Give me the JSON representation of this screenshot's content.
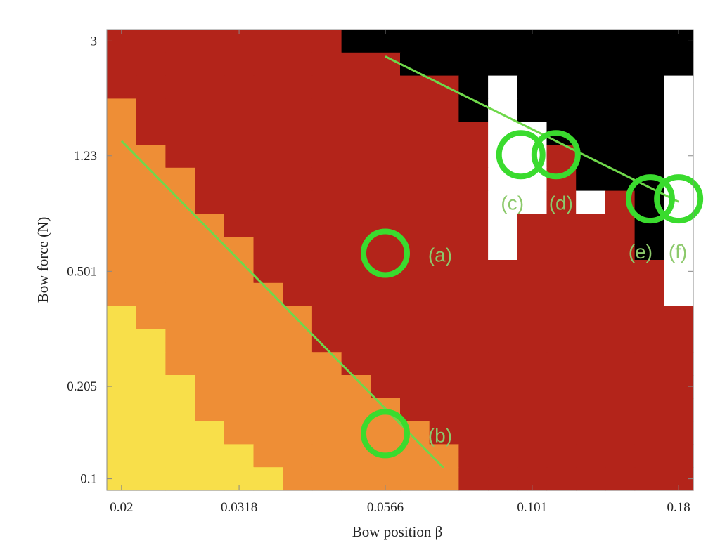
{
  "chart_data": {
    "type": "heatmap",
    "title": "",
    "xlabel": "Bow position β",
    "ylabel": "Bow force (N)",
    "xscale": "log",
    "yscale": "log",
    "xlim": [
      0.02,
      0.18
    ],
    "ylim": [
      0.1,
      3
    ],
    "xticks": [
      "0.02",
      "0.0318",
      "0.0566",
      "0.101",
      "0.18"
    ],
    "xtick_values": [
      0.02,
      0.0318,
      0.0566,
      0.101,
      0.18
    ],
    "yticks": [
      "3",
      "1.23",
      "0.501",
      "0.205",
      "0.1"
    ],
    "ytick_values": [
      3,
      1.23,
      0.501,
      0.205,
      0.1
    ],
    "grid": false,
    "n_cols": 20,
    "n_rows": 20,
    "row_order": "top row = highest force (3 N), bottom row = lowest force (0.1 N); columns left to right = beta 0.02 to 0.18",
    "category_colors": [
      "#F8DF4A",
      "#EE8E36",
      "#B3241A",
      "#000000",
      "#FFFFFF"
    ],
    "matrix": [
      [
        2,
        2,
        2,
        2,
        2,
        2,
        2,
        2,
        3,
        3,
        3,
        3,
        3,
        3,
        3,
        3,
        3,
        3,
        3,
        3
      ],
      [
        2,
        2,
        2,
        2,
        2,
        2,
        2,
        2,
        2,
        2,
        3,
        3,
        3,
        3,
        3,
        3,
        3,
        3,
        3,
        3
      ],
      [
        2,
        2,
        2,
        2,
        2,
        2,
        2,
        2,
        2,
        2,
        2,
        2,
        3,
        4,
        3,
        3,
        3,
        3,
        3,
        4
      ],
      [
        1,
        2,
        2,
        2,
        2,
        2,
        2,
        2,
        2,
        2,
        2,
        2,
        3,
        4,
        3,
        3,
        3,
        3,
        3,
        4
      ],
      [
        1,
        2,
        2,
        2,
        2,
        2,
        2,
        2,
        2,
        2,
        2,
        2,
        2,
        4,
        4,
        3,
        3,
        3,
        3,
        4
      ],
      [
        1,
        1,
        2,
        2,
        2,
        2,
        2,
        2,
        2,
        2,
        2,
        2,
        2,
        4,
        4,
        2,
        3,
        3,
        3,
        4
      ],
      [
        1,
        1,
        1,
        2,
        2,
        2,
        2,
        2,
        2,
        2,
        2,
        2,
        2,
        4,
        4,
        2,
        3,
        3,
        3,
        4
      ],
      [
        1,
        1,
        1,
        2,
        2,
        2,
        2,
        2,
        2,
        2,
        2,
        2,
        2,
        4,
        4,
        2,
        4,
        2,
        3,
        4
      ],
      [
        1,
        1,
        1,
        1,
        2,
        2,
        2,
        2,
        2,
        2,
        2,
        2,
        2,
        4,
        2,
        2,
        2,
        2,
        3,
        4
      ],
      [
        1,
        1,
        1,
        1,
        1,
        2,
        2,
        2,
        2,
        2,
        2,
        2,
        2,
        4,
        2,
        2,
        2,
        2,
        3,
        4
      ],
      [
        1,
        1,
        1,
        1,
        1,
        2,
        2,
        2,
        2,
        2,
        2,
        2,
        2,
        2,
        2,
        2,
        2,
        2,
        2,
        4
      ],
      [
        1,
        1,
        1,
        1,
        1,
        1,
        2,
        2,
        2,
        2,
        2,
        2,
        2,
        2,
        2,
        2,
        2,
        2,
        2,
        4
      ],
      [
        0,
        1,
        1,
        1,
        1,
        1,
        1,
        2,
        2,
        2,
        2,
        2,
        2,
        2,
        2,
        2,
        2,
        2,
        2,
        2
      ],
      [
        0,
        0,
        1,
        1,
        1,
        1,
        1,
        2,
        2,
        2,
        2,
        2,
        2,
        2,
        2,
        2,
        2,
        2,
        2,
        2
      ],
      [
        0,
        0,
        1,
        1,
        1,
        1,
        1,
        1,
        2,
        2,
        2,
        2,
        2,
        2,
        2,
        2,
        2,
        2,
        2,
        2
      ],
      [
        0,
        0,
        0,
        1,
        1,
        1,
        1,
        1,
        1,
        2,
        2,
        2,
        2,
        2,
        2,
        2,
        2,
        2,
        2,
        2
      ],
      [
        0,
        0,
        0,
        1,
        1,
        1,
        1,
        1,
        1,
        1,
        2,
        2,
        2,
        2,
        2,
        2,
        2,
        2,
        2,
        2
      ],
      [
        0,
        0,
        0,
        0,
        1,
        1,
        1,
        1,
        1,
        1,
        1,
        2,
        2,
        2,
        2,
        2,
        2,
        2,
        2,
        2
      ],
      [
        0,
        0,
        0,
        0,
        0,
        1,
        1,
        1,
        1,
        1,
        1,
        1,
        2,
        2,
        2,
        2,
        2,
        2,
        2,
        2
      ],
      [
        0,
        0,
        0,
        0,
        0,
        0,
        1,
        1,
        1,
        1,
        1,
        1,
        2,
        2,
        2,
        2,
        2,
        2,
        2,
        2
      ]
    ],
    "annotations": {
      "line_color": "#6FD84B",
      "circle_color": "#3ADB2E",
      "label_color": "#8CC96B",
      "lines": [
        {
          "from": [
            0.02,
            1.38
          ],
          "to": [
            0.0712,
            0.109
          ]
        },
        {
          "from": [
            0.0566,
            2.66
          ],
          "to": [
            0.18,
            0.86
          ]
        }
      ],
      "circles": [
        {
          "label": "(a)",
          "x": 0.0566,
          "y": 0.577
        },
        {
          "label": "(b)",
          "x": 0.0566,
          "y": 0.142
        },
        {
          "label": "(c)",
          "x": 0.0966,
          "y": 1.24
        },
        {
          "label": "(d)",
          "x": 0.111,
          "y": 1.24
        },
        {
          "label": "(e)",
          "x": 0.161,
          "y": 0.88
        },
        {
          "label": "(f)",
          "x": 0.18,
          "y": 0.88
        }
      ]
    }
  }
}
